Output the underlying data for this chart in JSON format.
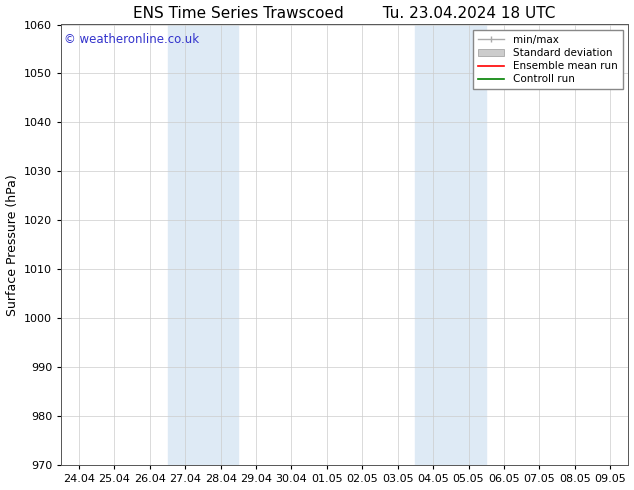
{
  "title_left": "ENS Time Series Trawscoed",
  "title_right": "Tu. 23.04.2024 18 UTC",
  "ylabel": "Surface Pressure (hPa)",
  "ylim": [
    970,
    1060
  ],
  "yticks": [
    970,
    980,
    990,
    1000,
    1010,
    1020,
    1030,
    1040,
    1050,
    1060
  ],
  "xtick_labels": [
    "24.04",
    "25.04",
    "26.04",
    "27.04",
    "28.04",
    "29.04",
    "30.04",
    "01.05",
    "02.05",
    "03.05",
    "04.05",
    "05.05",
    "06.05",
    "07.05",
    "08.05",
    "09.05"
  ],
  "xtick_positions": [
    0,
    1,
    2,
    3,
    4,
    5,
    6,
    7,
    8,
    9,
    10,
    11,
    12,
    13,
    14,
    15
  ],
  "shaded_regions": [
    {
      "xmin": 3,
      "xmax": 5,
      "color": "#deeaf5"
    },
    {
      "xmin": 10,
      "xmax": 12,
      "color": "#deeaf5"
    }
  ],
  "watermark_text": "© weatheronline.co.uk",
  "watermark_color": "#3333cc",
  "watermark_fontsize": 8.5,
  "legend_entries": [
    {
      "label": "min/max",
      "color": "#aaaaaa",
      "type": "errbar"
    },
    {
      "label": "Standard deviation",
      "color": "#cccccc",
      "type": "patch"
    },
    {
      "label": "Ensemble mean run",
      "color": "red",
      "type": "line"
    },
    {
      "label": "Controll run",
      "color": "green",
      "type": "line"
    }
  ],
  "background_color": "#ffffff",
  "grid_color": "#cccccc",
  "title_fontsize": 11,
  "ylabel_fontsize": 9,
  "tick_fontsize": 8,
  "legend_fontsize": 7.5
}
